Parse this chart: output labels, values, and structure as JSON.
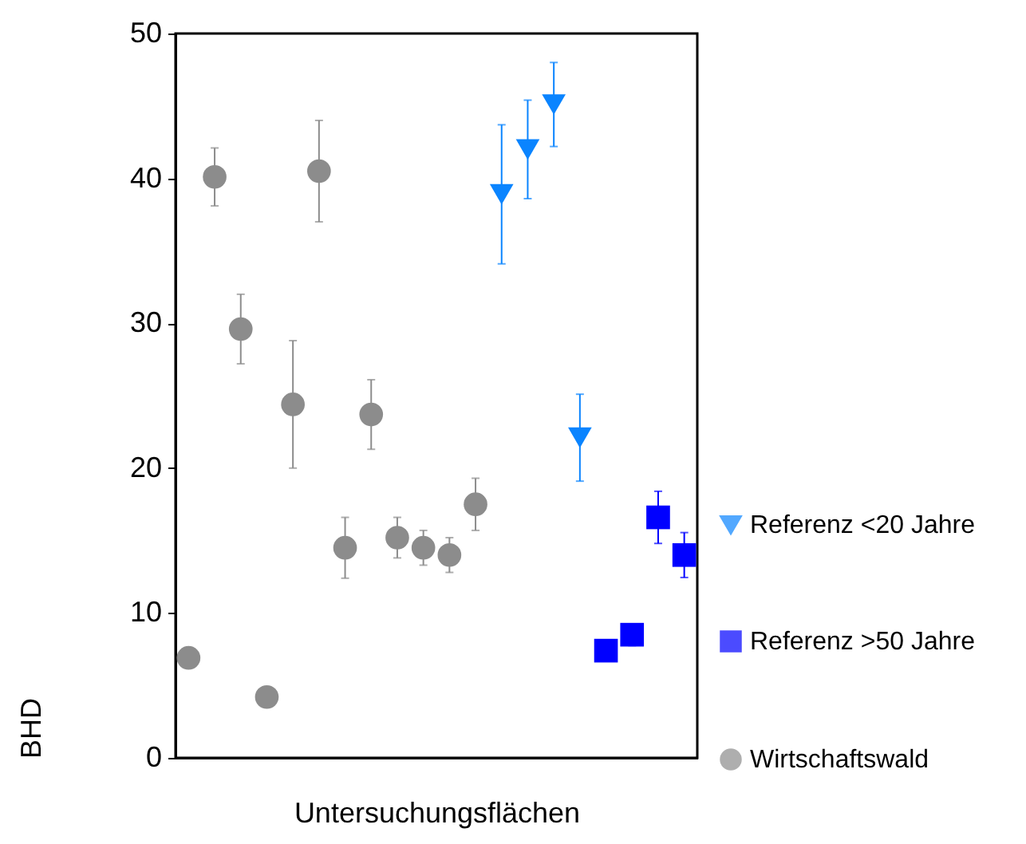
{
  "chart_data": {
    "type": "scatter",
    "xlabel": "Untersuchungsflächen",
    "ylabel": "BHD",
    "categories": [
      null,
      null,
      null,
      null,
      null,
      null,
      null,
      null,
      null,
      null,
      null,
      null,
      null,
      null,
      null,
      null,
      null,
      null,
      null,
      null
    ],
    "ylim": [
      0,
      50
    ],
    "yticks": [
      0,
      10,
      20,
      30,
      40,
      50
    ],
    "tick_labels": "y",
    "grid": false,
    "legend": "right",
    "series": [
      {
        "name": "Referenz <20 Jahre",
        "color": "#0a84ff",
        "marker": "triangle",
        "values": [
          null,
          null,
          null,
          null,
          null,
          null,
          null,
          null,
          null,
          null,
          null,
          null,
          38.9,
          42.0,
          45.1,
          22.1,
          null,
          null,
          null,
          null
        ],
        "errors": [
          null,
          null,
          null,
          null,
          null,
          null,
          null,
          null,
          null,
          null,
          null,
          null,
          4.8,
          3.4,
          2.9,
          3.0,
          null,
          null,
          null,
          null
        ]
      },
      {
        "name": "Referenz >50 Jahre",
        "color": "#0000ff",
        "marker": "square",
        "values": [
          null,
          null,
          null,
          null,
          null,
          null,
          null,
          null,
          null,
          null,
          null,
          null,
          null,
          null,
          null,
          null,
          7.4,
          8.5,
          16.6,
          14.0
        ],
        "errors": [
          null,
          null,
          null,
          null,
          null,
          null,
          null,
          null,
          null,
          null,
          null,
          null,
          null,
          null,
          null,
          null,
          null,
          0.75,
          1.8,
          1.55
        ]
      },
      {
        "name": "Wirtschaftswald",
        "color": "#8c8c8c",
        "marker": "circle",
        "values": [
          6.9,
          40.1,
          29.6,
          4.2,
          24.4,
          40.5,
          14.5,
          23.7,
          15.2,
          14.5,
          14.0,
          17.5,
          null,
          null,
          null,
          null,
          null,
          null,
          null,
          null
        ],
        "errors": [
          null,
          2.0,
          2.4,
          null,
          4.4,
          3.5,
          2.1,
          2.4,
          1.4,
          1.2,
          1.2,
          1.8,
          null,
          null,
          null,
          null,
          null,
          null,
          null,
          null
        ]
      }
    ]
  }
}
